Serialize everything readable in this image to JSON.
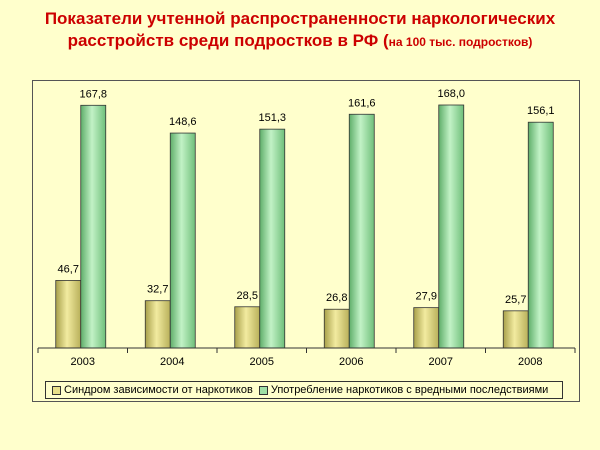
{
  "title": {
    "line1": "Показатели учтенной распространенности наркологических",
    "line2_main": "расстройств среди подростков в РФ (",
    "line2_small": "на 100 тыс. подростков)"
  },
  "chart_data": {
    "type": "bar",
    "categories": [
      "2003",
      "2004",
      "2005",
      "2006",
      "2007",
      "2008"
    ],
    "series": [
      {
        "name": "Синдром зависимости от наркотиков",
        "values": [
          46.7,
          32.7,
          28.5,
          26.8,
          27.9,
          25.7
        ],
        "labels": [
          "46,7",
          "32,7",
          "28,5",
          "26,8",
          "27,9",
          "25,7"
        ],
        "color": "#e8e08a"
      },
      {
        "name": "Употребление наркотиков с вредными последствиями",
        "values": [
          167.8,
          148.6,
          151.3,
          161.6,
          168.0,
          156.1
        ],
        "labels": [
          "167,8",
          "148,6",
          "151,3",
          "161,6",
          "168,0",
          "156,1"
        ],
        "color": "#9fe0a6"
      }
    ],
    "ylim": [
      0,
      175
    ],
    "legend_position": "bottom",
    "grid": false
  }
}
